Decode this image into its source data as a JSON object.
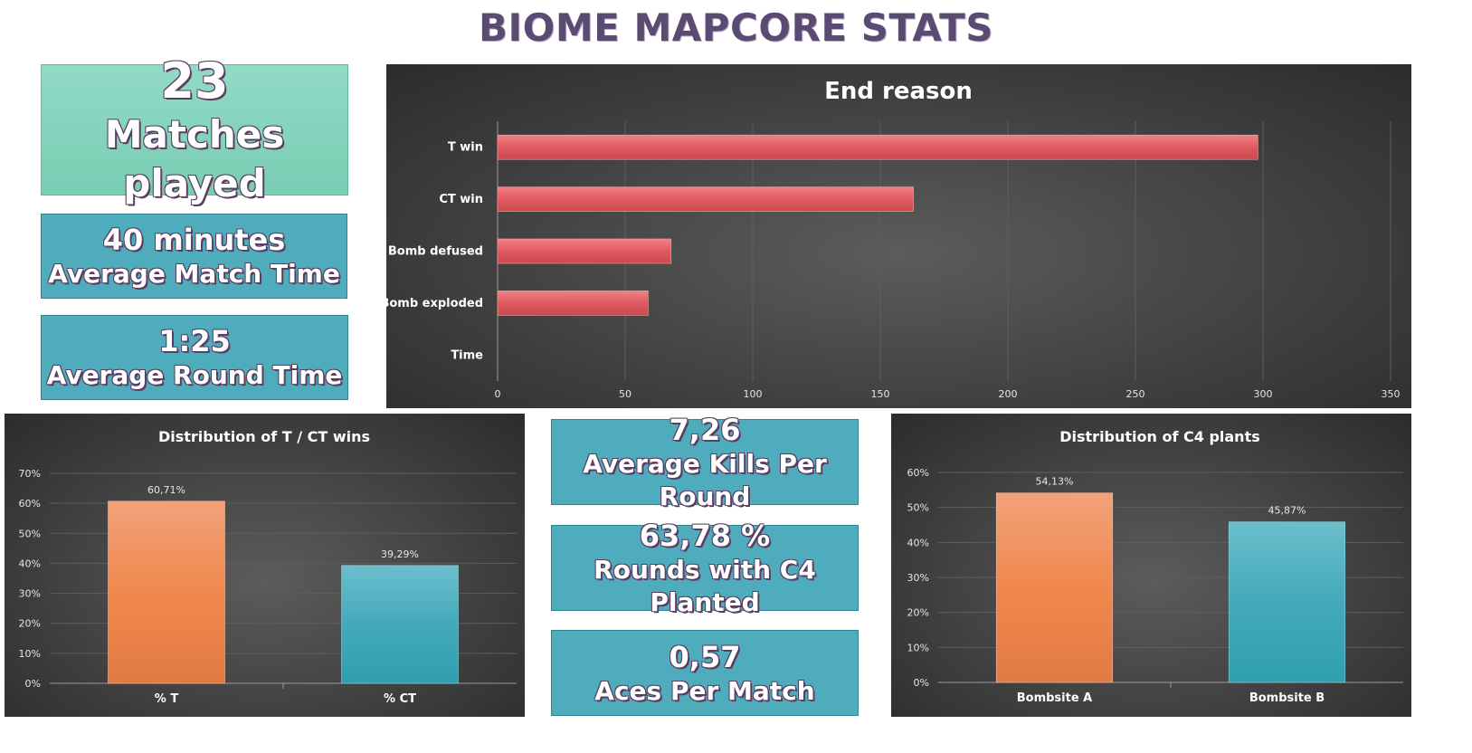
{
  "page_title": "BIOME MAPCORE STATS",
  "cards": {
    "matches": {
      "value": "23",
      "label": "Matches played"
    },
    "match_time": {
      "value": "40 minutes",
      "label": "Average Match Time"
    },
    "round_time": {
      "value": "1:25",
      "label": "Average Round Time"
    },
    "kills": {
      "value": "7,26",
      "label": "Average Kills Per Round"
    },
    "c4_rounds": {
      "value": "63,78 %",
      "label": "Rounds with C4 Planted"
    },
    "aces": {
      "value": "0,57",
      "label": "Aces Per Match"
    }
  },
  "colors": {
    "bar_red": "#e05a60",
    "bar_orange": "#f0884e",
    "bar_teal": "#43a9ba"
  },
  "chart_data": [
    {
      "id": "end_reason",
      "type": "bar",
      "orientation": "horizontal",
      "title": "End reason",
      "categories": [
        "T win",
        "CT win",
        "Bomb defused",
        "Bomb exploded",
        "Time"
      ],
      "values": [
        298,
        163,
        68,
        59,
        0
      ],
      "xlim": [
        0,
        350
      ],
      "ticks": [
        "0",
        "50",
        "100",
        "150",
        "200",
        "250",
        "300",
        "350"
      ],
      "tick_values": [
        0,
        50,
        100,
        150,
        200,
        250,
        300,
        350
      ]
    },
    {
      "id": "tct_wins",
      "type": "bar",
      "title": "Distribution of T / CT wins",
      "categories": [
        "% T",
        "% CT"
      ],
      "values": [
        60.71,
        39.29
      ],
      "labels": [
        "60,71%",
        "39,29%"
      ],
      "ylim": [
        0,
        70
      ],
      "ticks": [
        "0%",
        "10%",
        "20%",
        "30%",
        "40%",
        "50%",
        "60%",
        "70%"
      ],
      "tick_values": [
        0,
        10,
        20,
        30,
        40,
        50,
        60,
        70
      ]
    },
    {
      "id": "c4_plants",
      "type": "bar",
      "title": "Distribution of C4 plants",
      "categories": [
        "Bombsite A",
        "Bombsite B"
      ],
      "values": [
        54.13,
        45.87
      ],
      "labels": [
        "54,13%",
        "45,87%"
      ],
      "ylim": [
        0,
        60
      ],
      "ticks": [
        "0%",
        "10%",
        "20%",
        "30%",
        "40%",
        "50%",
        "60%"
      ],
      "tick_values": [
        0,
        10,
        20,
        30,
        40,
        50,
        60
      ]
    }
  ]
}
